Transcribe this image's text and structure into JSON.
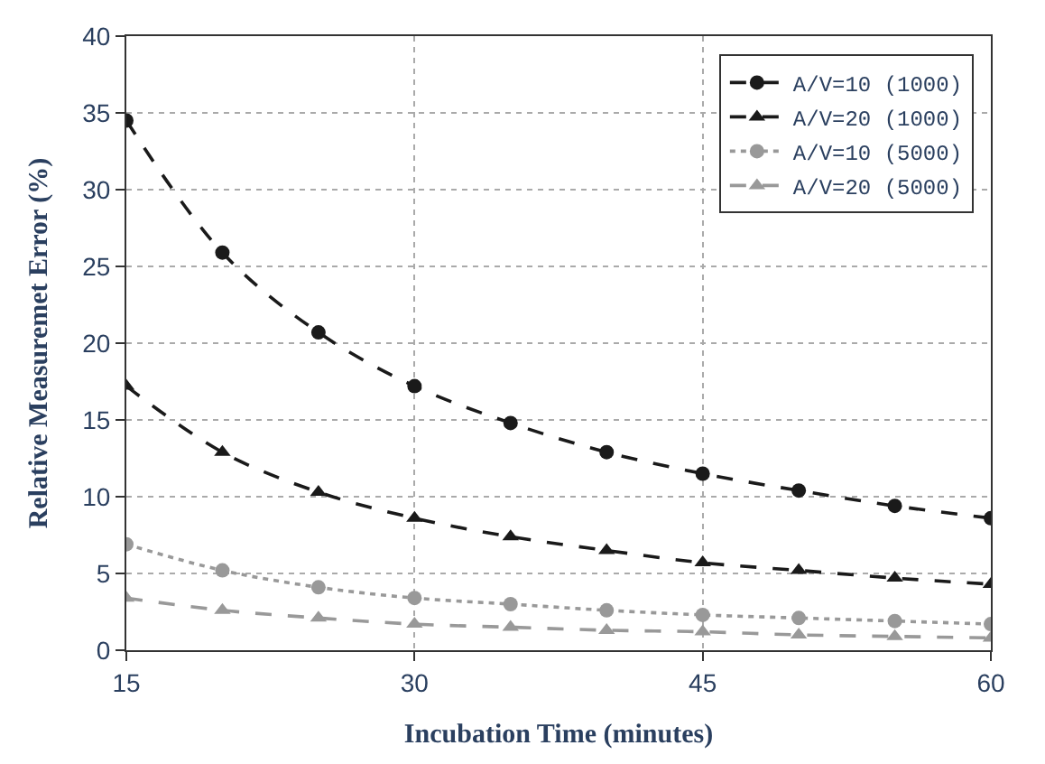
{
  "chart_data": {
    "type": "line",
    "xlabel": "Incubation Time (minutes)",
    "ylabel": "Relative Measuremet Error (%)",
    "x": [
      15,
      20,
      25,
      30,
      35,
      40,
      45,
      50,
      55,
      60
    ],
    "xlim": [
      15,
      60
    ],
    "xticks": [
      15,
      30,
      45,
      60
    ],
    "ylim": [
      0,
      40
    ],
    "yticks": [
      0,
      5,
      10,
      15,
      20,
      25,
      30,
      35,
      40
    ],
    "grid": true,
    "legend": "top right",
    "series": [
      {
        "name": "A/V=10 (1000)",
        "color": "#1a1a1a",
        "marker": "circle",
        "line_style": "dashed",
        "values": [
          34.5,
          25.9,
          20.7,
          17.2,
          14.8,
          12.9,
          11.5,
          10.4,
          9.4,
          8.6
        ]
      },
      {
        "name": "A/V=20 (1000)",
        "color": "#1a1a1a",
        "marker": "triangle",
        "line_style": "dashed",
        "values": [
          17.2,
          12.9,
          10.3,
          8.6,
          7.4,
          6.5,
          5.7,
          5.2,
          4.7,
          4.3
        ]
      },
      {
        "name": "A/V=10 (5000)",
        "color": "#999999",
        "marker": "circle",
        "line_style": "dotted",
        "values": [
          6.9,
          5.2,
          4.1,
          3.4,
          3.0,
          2.6,
          2.3,
          2.1,
          1.9,
          1.7
        ]
      },
      {
        "name": "A/V=20 (5000)",
        "color": "#999999",
        "marker": "triangle",
        "line_style": "dashed",
        "values": [
          3.4,
          2.6,
          2.1,
          1.7,
          1.5,
          1.3,
          1.2,
          1.0,
          0.9,
          0.8
        ]
      }
    ]
  }
}
